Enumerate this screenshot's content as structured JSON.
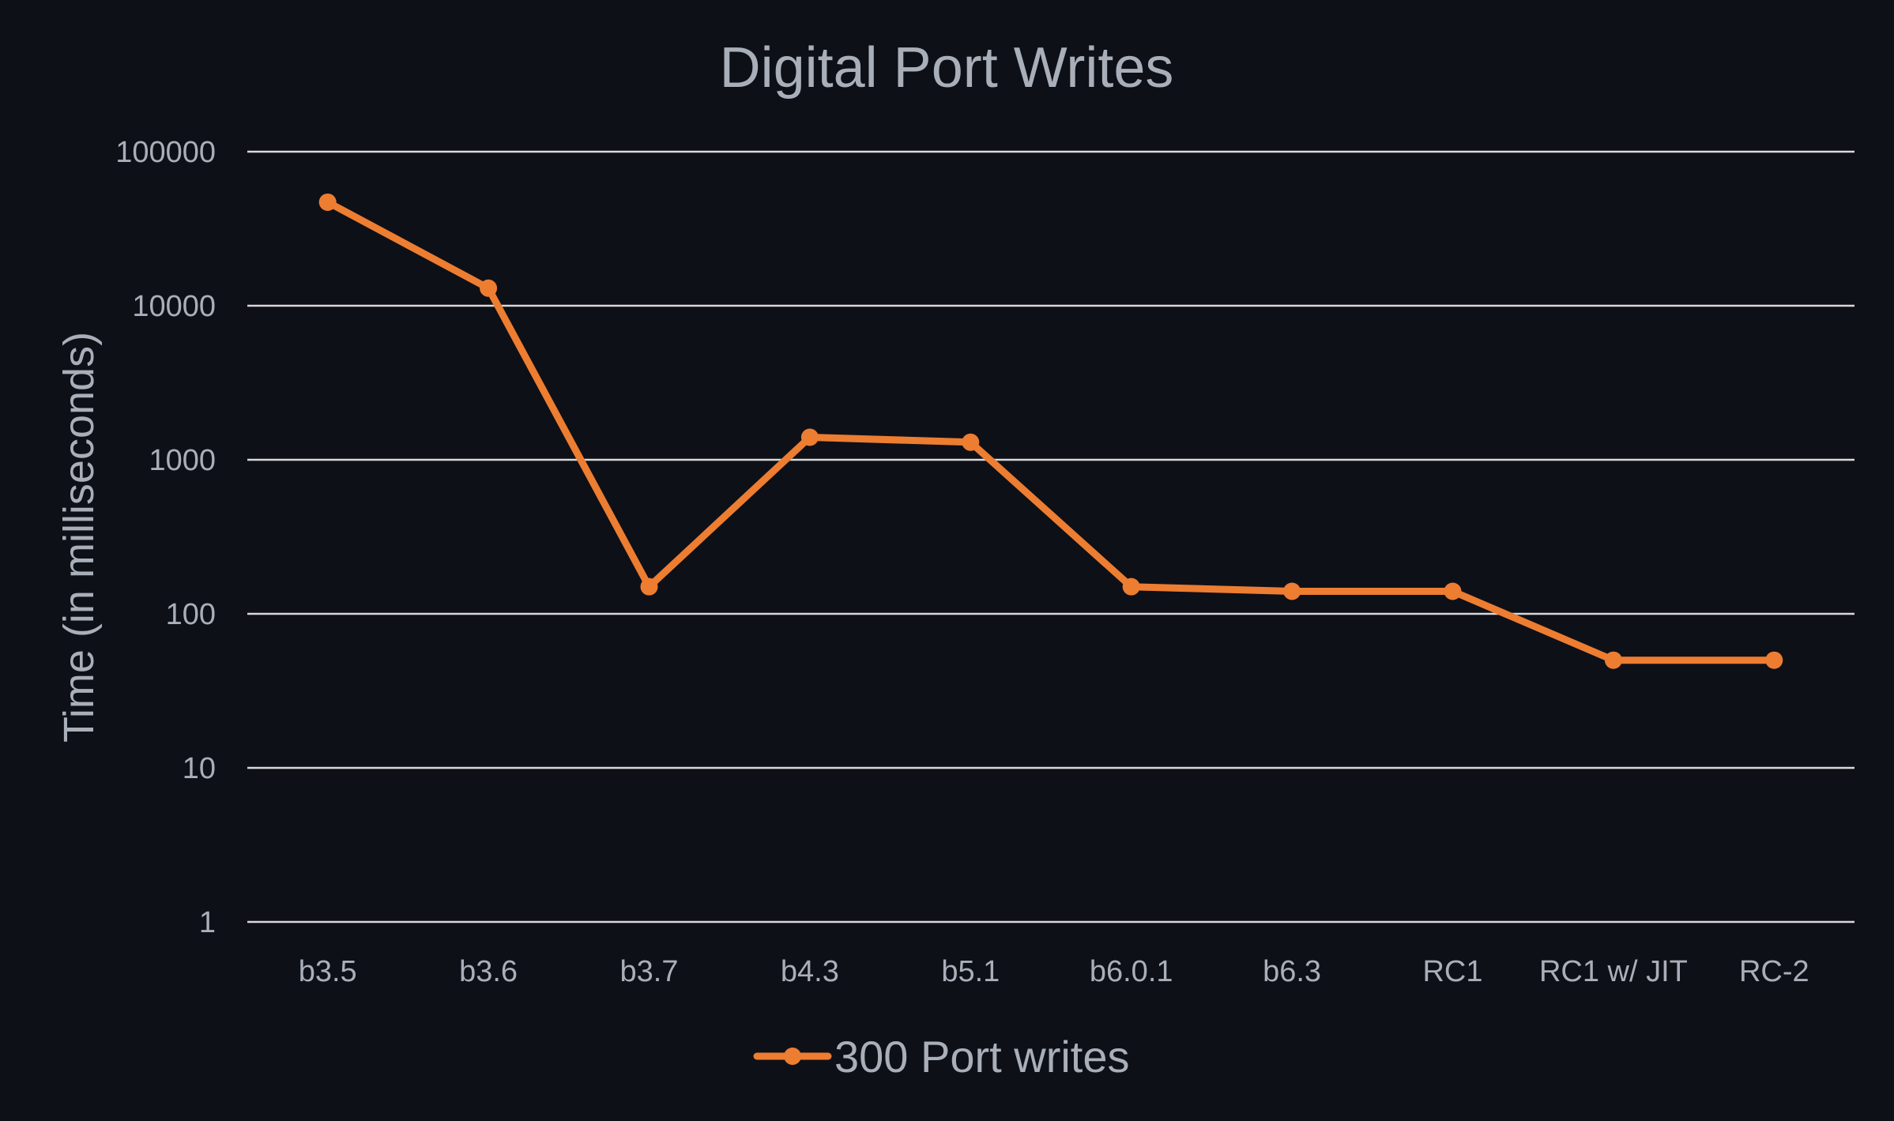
{
  "chart_data": {
    "type": "line",
    "title": "Digital Port Writes",
    "xlabel": "",
    "ylabel": "Time (in milliseconds)",
    "yscale": "log",
    "ylim": [
      1,
      100000
    ],
    "yticks": [
      "1",
      "10",
      "100",
      "1000",
      "10000",
      "100000"
    ],
    "grid": true,
    "legend_position": "bottom",
    "categories": [
      "b3.5",
      "b3.6",
      "b3.7",
      "b4.3",
      "b5.1",
      "b6.0.1",
      "b6.3",
      "RC1",
      "RC1 w/ JIT",
      "RC-2"
    ],
    "series": [
      {
        "name": "300 Port writes",
        "color": "#ed7d31",
        "values": [
          47000,
          13000,
          150,
          1400,
          1300,
          150,
          140,
          140,
          50,
          50
        ]
      }
    ]
  },
  "colors": {
    "background": "#0e1018",
    "text": "#a9afb8",
    "grid": "#d9d9d9"
  }
}
